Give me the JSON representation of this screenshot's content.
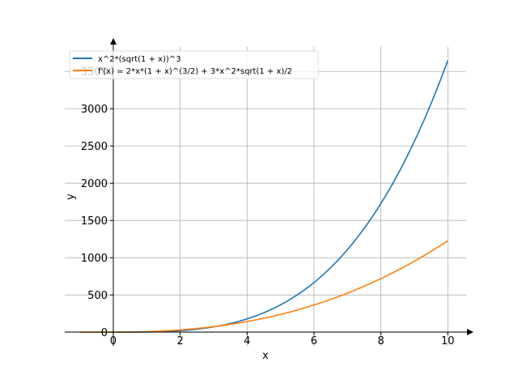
{
  "chart_data": {
    "type": "line",
    "title": "",
    "xlabel": "x",
    "ylabel": "y",
    "xlim": [
      -1.45,
      10.55
    ],
    "ylim": [
      -185,
      3833
    ],
    "grid": true,
    "legend_placement": "top-left",
    "xticks": [
      0,
      2,
      4,
      6,
      8,
      10
    ],
    "xtick_labels": [
      "0",
      "2",
      "4",
      "6",
      "8",
      "10"
    ],
    "yticks": [
      0,
      500,
      1000,
      1500,
      2000,
      2500,
      3000,
      3500
    ],
    "ytick_labels": [
      "0",
      "500",
      "1000",
      "1500",
      "2000",
      "2500",
      "3000",
      "3500"
    ],
    "x_range": [
      -1,
      10
    ],
    "series": [
      {
        "name": "x^2*(sqrt(1 + x))^3",
        "color": "#1f77b4",
        "expr": "f",
        "x": [
          -1,
          0,
          1,
          2,
          3,
          4,
          5,
          6,
          7,
          8,
          9,
          10
        ],
        "values": [
          0,
          0,
          2.83,
          20.78,
          72,
          178.9,
          330.7,
          648.2,
          1108.7,
          1728,
          2845.9,
          3648.3
        ]
      },
      {
        "name": "f'(x) = 2*x*(1 + x)^(3/2) + 3*x^2*sqrt(1 + x)/2",
        "color": "#ff7f0e",
        "expr": "df",
        "x": [
          -1,
          0,
          1,
          2,
          3,
          4,
          5,
          6,
          7,
          8,
          9,
          10
        ],
        "values": [
          0,
          0,
          7.78,
          31.2,
          78,
          156.5,
          273.5,
          437.8,
          657.6,
          940,
          1291.8,
          1227.5
        ]
      }
    ]
  }
}
